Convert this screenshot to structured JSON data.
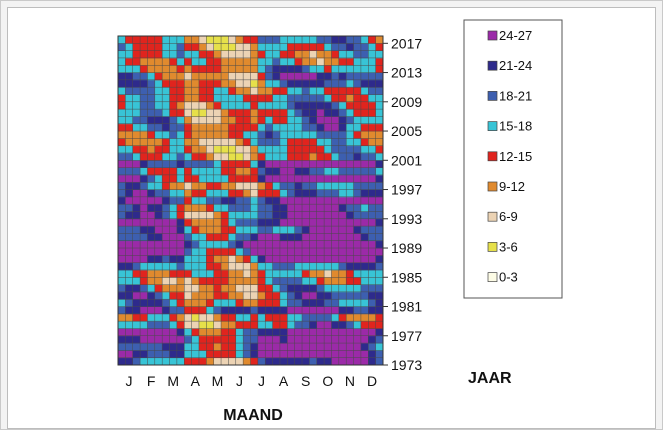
{
  "chart_data": {
    "type": "heatmap",
    "xlabel": "MAAND",
    "ylabel": "JAAR",
    "x_tick_labels": [
      "J",
      "F",
      "M",
      "A",
      "M",
      "J",
      "J",
      "A",
      "S",
      "O",
      "N",
      "D"
    ],
    "y_tick_labels": [
      "1973",
      "1977",
      "1981",
      "1985",
      "1989",
      "1993",
      "1997",
      "2001",
      "2005",
      "2009",
      "2013",
      "2017"
    ],
    "y_range": [
      1973,
      2018
    ],
    "legend_placement": "right",
    "grid": true,
    "legend": [
      {
        "label": "24-27",
        "color": "#9b2aa8"
      },
      {
        "label": "21-24",
        "color": "#2e2a8c"
      },
      {
        "label": "18-21",
        "color": "#3d5fb0"
      },
      {
        "label": "15-18",
        "color": "#38c4d6"
      },
      {
        "label": "12-15",
        "color": "#e0241e"
      },
      {
        "label": "9-12",
        "color": "#e08a2e"
      },
      {
        "label": "6-9",
        "color": "#ecd3b4"
      },
      {
        "label": "3-6",
        "color": "#e6e04a"
      },
      {
        "label": "0-3",
        "color": "#fdfce6"
      }
    ]
  }
}
